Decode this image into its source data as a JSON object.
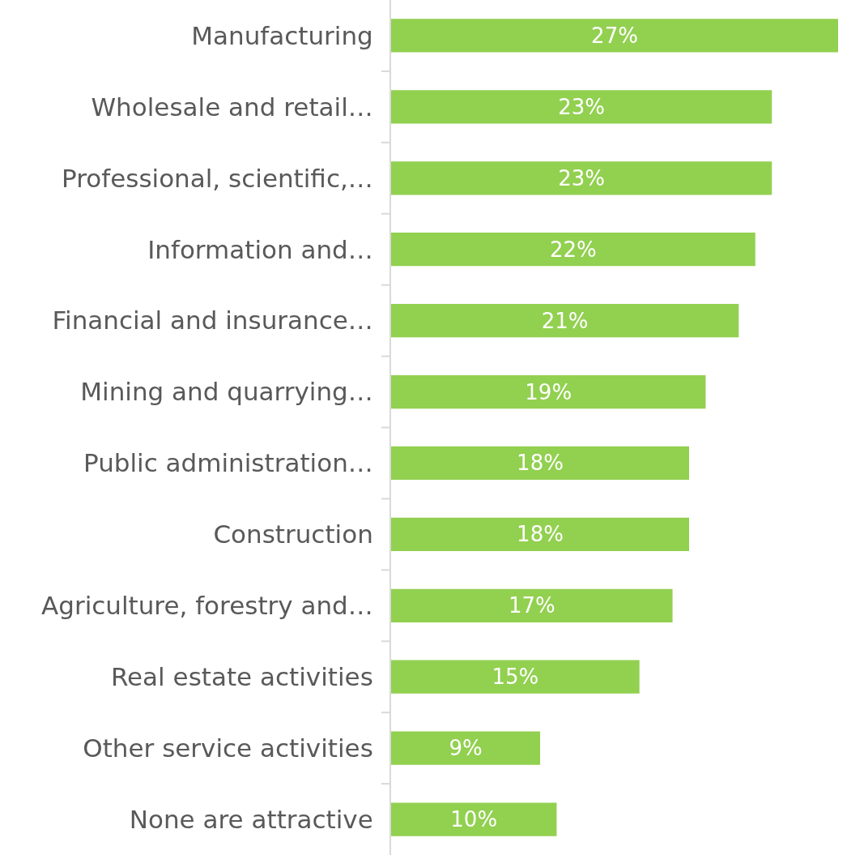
{
  "chart_data": {
    "type": "bar",
    "orientation": "horizontal",
    "categories": [
      "Manufacturing",
      "Wholesale and retail…",
      "Professional, scientific,…",
      "Information and…",
      "Financial and insurance…",
      "Mining and quarrying…",
      "Public administration…",
      "Construction",
      "Agriculture, forestry and…",
      "Real estate activities",
      "Other service activities",
      "None are attractive"
    ],
    "values": [
      27,
      23,
      23,
      22,
      21,
      19,
      18,
      18,
      17,
      15,
      9,
      10
    ],
    "value_labels": [
      "27%",
      "23%",
      "23%",
      "22%",
      "21%",
      "19%",
      "18%",
      "18%",
      "17%",
      "15%",
      "9%",
      "10%"
    ],
    "color": "#92d050",
    "legend": false
  }
}
